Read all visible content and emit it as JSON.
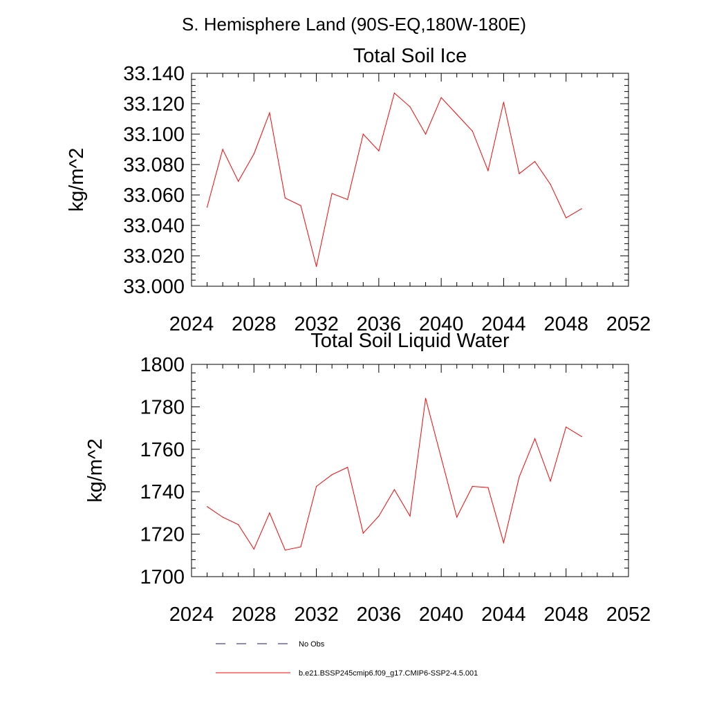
{
  "figure": {
    "title": "S. Hemisphere Land (90S-EQ,180W-180E)"
  },
  "legend": {
    "items": [
      {
        "label": "No Obs",
        "color": "#1a1a66",
        "dash": true
      },
      {
        "label": "b.e21.BSSP245cmip6.f09_g17.CMIP6-SSP2-4.5.001",
        "color": "#ff0000",
        "dash": false
      }
    ]
  },
  "colors": {
    "series": "#ff0000",
    "axis": "#000000",
    "obs": "#1a1a66"
  },
  "chart_data": [
    {
      "type": "line",
      "title": "Total Soil Ice",
      "xlabel": "",
      "ylabel": "kg/m^2",
      "xlim": [
        2024,
        2052
      ],
      "ylim": [
        33.0,
        33.14
      ],
      "xticks": [
        2024,
        2028,
        2032,
        2036,
        2040,
        2044,
        2048,
        2052
      ],
      "yticks": [
        33.0,
        33.02,
        33.04,
        33.06,
        33.08,
        33.1,
        33.12,
        33.14
      ],
      "ytick_labels": [
        "33.000",
        "33.020",
        "33.040",
        "33.060",
        "33.080",
        "33.100",
        "33.120",
        "33.140"
      ],
      "grid": false,
      "series": [
        {
          "color": "#ff0000",
          "x": [
            2025,
            2026,
            2027,
            2028,
            2029,
            2030,
            2031,
            2032,
            2033,
            2034,
            2035,
            2036,
            2037,
            2038,
            2039,
            2040,
            2041,
            2042,
            2043,
            2044,
            2045,
            2046,
            2047,
            2048,
            2049
          ],
          "values": [
            33.052,
            33.09,
            33.069,
            33.087,
            33.114,
            33.058,
            33.053,
            33.013,
            33.061,
            33.057,
            33.1,
            33.089,
            33.127,
            33.118,
            33.1,
            33.124,
            33.113,
            33.102,
            33.076,
            33.121,
            33.074,
            33.082,
            33.067,
            33.045,
            33.051
          ]
        }
      ]
    },
    {
      "type": "line",
      "title": "Total Soil Liquid Water",
      "xlabel": "",
      "ylabel": "kg/m^2",
      "xlim": [
        2024,
        2052
      ],
      "ylim": [
        1700,
        1800
      ],
      "xticks": [
        2024,
        2028,
        2032,
        2036,
        2040,
        2044,
        2048,
        2052
      ],
      "yticks": [
        1700,
        1720,
        1740,
        1760,
        1780,
        1800
      ],
      "ytick_labels": [
        "1700",
        "1720",
        "1740",
        "1760",
        "1780",
        "1800"
      ],
      "grid": false,
      "series": [
        {
          "color": "#ff0000",
          "x": [
            2025,
            2026,
            2027,
            2028,
            2029,
            2030,
            2031,
            2032,
            2033,
            2034,
            2035,
            2036,
            2037,
            2038,
            2039,
            2040,
            2041,
            2042,
            2043,
            2044,
            2045,
            2046,
            2047,
            2048,
            2049
          ],
          "values": [
            1733.0,
            1728.0,
            1724.5,
            1713.0,
            1730.0,
            1712.5,
            1714.0,
            1742.5,
            1748.0,
            1751.5,
            1720.5,
            1728.5,
            1741.0,
            1728.5,
            1784.0,
            1756.0,
            1728.0,
            1742.5,
            1742.0,
            1716.0,
            1747.0,
            1765.0,
            1745.0,
            1770.5,
            1766.0
          ]
        }
      ]
    }
  ]
}
